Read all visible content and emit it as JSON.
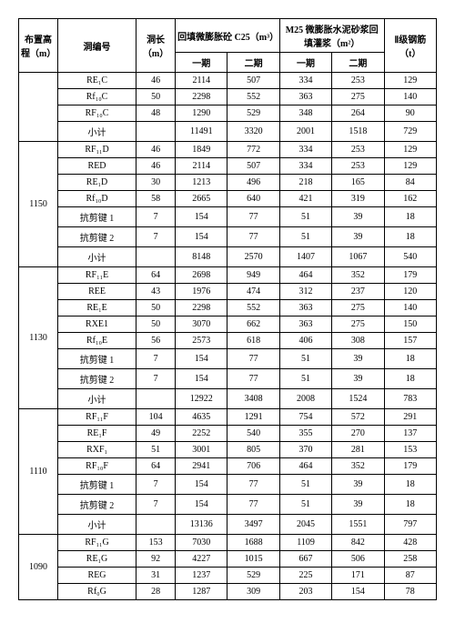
{
  "headers": {
    "elevation": "布置高程（m）",
    "tunnelCode": "洞编号",
    "length": "洞长（m）",
    "c25": "回填微膨胀砼 C25（m³）",
    "m25": "M25 微膨胀水泥砂浆回填灌浆（m²）",
    "phase1": "一期",
    "phase2": "二期",
    "steel": "Ⅱ级钢筋（t）"
  },
  "groups": [
    {
      "elev": "",
      "rows": [
        {
          "code": "RE₁C",
          "len": "46",
          "c1": "2114",
          "c2": "507",
          "m1": "334",
          "m2": "253",
          "st": "129"
        },
        {
          "code": "Rf₁₀C",
          "len": "50",
          "c1": "2298",
          "c2": "552",
          "m1": "363",
          "m2": "275",
          "st": "140"
        },
        {
          "code": "RF₁₀C",
          "len": "48",
          "c1": "1290",
          "c2": "529",
          "m1": "348",
          "m2": "264",
          "st": "90"
        },
        {
          "code": "小计",
          "len": "",
          "c1": "11491",
          "c2": "3320",
          "m1": "2001",
          "m2": "1518",
          "st": "729"
        }
      ]
    },
    {
      "elev": "1150",
      "rows": [
        {
          "code": "RF₁₁D",
          "len": "46",
          "c1": "1849",
          "c2": "772",
          "m1": "334",
          "m2": "253",
          "st": "129"
        },
        {
          "code": "RED",
          "len": "46",
          "c1": "2114",
          "c2": "507",
          "m1": "334",
          "m2": "253",
          "st": "129"
        },
        {
          "code": "RE₁D",
          "len": "30",
          "c1": "1213",
          "c2": "496",
          "m1": "218",
          "m2": "165",
          "st": "84"
        },
        {
          "code": "Rf₁₀D",
          "len": "58",
          "c1": "2665",
          "c2": "640",
          "m1": "421",
          "m2": "319",
          "st": "162"
        },
        {
          "code": "抗剪键 1",
          "len": "7",
          "c1": "154",
          "c2": "77",
          "m1": "51",
          "m2": "39",
          "st": "18"
        },
        {
          "code": "抗剪键 2",
          "len": "7",
          "c1": "154",
          "c2": "77",
          "m1": "51",
          "m2": "39",
          "st": "18"
        },
        {
          "code": "小计",
          "len": "",
          "c1": "8148",
          "c2": "2570",
          "m1": "1407",
          "m2": "1067",
          "st": "540"
        }
      ]
    },
    {
      "elev": "1130",
      "rows": [
        {
          "code": "RF₁₁E",
          "len": "64",
          "c1": "2698",
          "c2": "949",
          "m1": "464",
          "m2": "352",
          "st": "179"
        },
        {
          "code": "REE",
          "len": "43",
          "c1": "1976",
          "c2": "474",
          "m1": "312",
          "m2": "237",
          "st": "120"
        },
        {
          "code": "RE₁E",
          "len": "50",
          "c1": "2298",
          "c2": "552",
          "m1": "363",
          "m2": "275",
          "st": "140"
        },
        {
          "code": "RXE1",
          "len": "50",
          "c1": "3070",
          "c2": "662",
          "m1": "363",
          "m2": "275",
          "st": "150"
        },
        {
          "code": "Rf₁₀E",
          "len": "56",
          "c1": "2573",
          "c2": "618",
          "m1": "406",
          "m2": "308",
          "st": "157"
        },
        {
          "code": "抗剪键 1",
          "len": "7",
          "c1": "154",
          "c2": "77",
          "m1": "51",
          "m2": "39",
          "st": "18"
        },
        {
          "code": "抗剪键 2",
          "len": "7",
          "c1": "154",
          "c2": "77",
          "m1": "51",
          "m2": "39",
          "st": "18"
        },
        {
          "code": "小计",
          "len": "",
          "c1": "12922",
          "c2": "3408",
          "m1": "2008",
          "m2": "1524",
          "st": "783"
        }
      ]
    },
    {
      "elev": "1110",
      "rows": [
        {
          "code": "RF₁₁F",
          "len": "104",
          "c1": "4635",
          "c2": "1291",
          "m1": "754",
          "m2": "572",
          "st": "291"
        },
        {
          "code": "RE₁F",
          "len": "49",
          "c1": "2252",
          "c2": "540",
          "m1": "355",
          "m2": "270",
          "st": "137"
        },
        {
          "code": "RXF₁",
          "len": "51",
          "c1": "3001",
          "c2": "805",
          "m1": "370",
          "m2": "281",
          "st": "153"
        },
        {
          "code": "RF₁₀F",
          "len": "64",
          "c1": "2941",
          "c2": "706",
          "m1": "464",
          "m2": "352",
          "st": "179"
        },
        {
          "code": "抗剪键 1",
          "len": "7",
          "c1": "154",
          "c2": "77",
          "m1": "51",
          "m2": "39",
          "st": "18"
        },
        {
          "code": "抗剪键 2",
          "len": "7",
          "c1": "154",
          "c2": "77",
          "m1": "51",
          "m2": "39",
          "st": "18"
        },
        {
          "code": "小计",
          "len": "",
          "c1": "13136",
          "c2": "3497",
          "m1": "2045",
          "m2": "1551",
          "st": "797"
        }
      ]
    },
    {
      "elev": "1090",
      "rows": [
        {
          "code": "RF₁₁G",
          "len": "153",
          "c1": "7030",
          "c2": "1688",
          "m1": "1109",
          "m2": "842",
          "st": "428"
        },
        {
          "code": "RE₁G",
          "len": "92",
          "c1": "4227",
          "c2": "1015",
          "m1": "667",
          "m2": "506",
          "st": "258"
        },
        {
          "code": "REG",
          "len": "31",
          "c1": "1237",
          "c2": "529",
          "m1": "225",
          "m2": "171",
          "st": "87"
        },
        {
          "code": "Rf₀G",
          "len": "28",
          "c1": "1287",
          "c2": "309",
          "m1": "203",
          "m2": "154",
          "st": "78"
        }
      ]
    }
  ]
}
